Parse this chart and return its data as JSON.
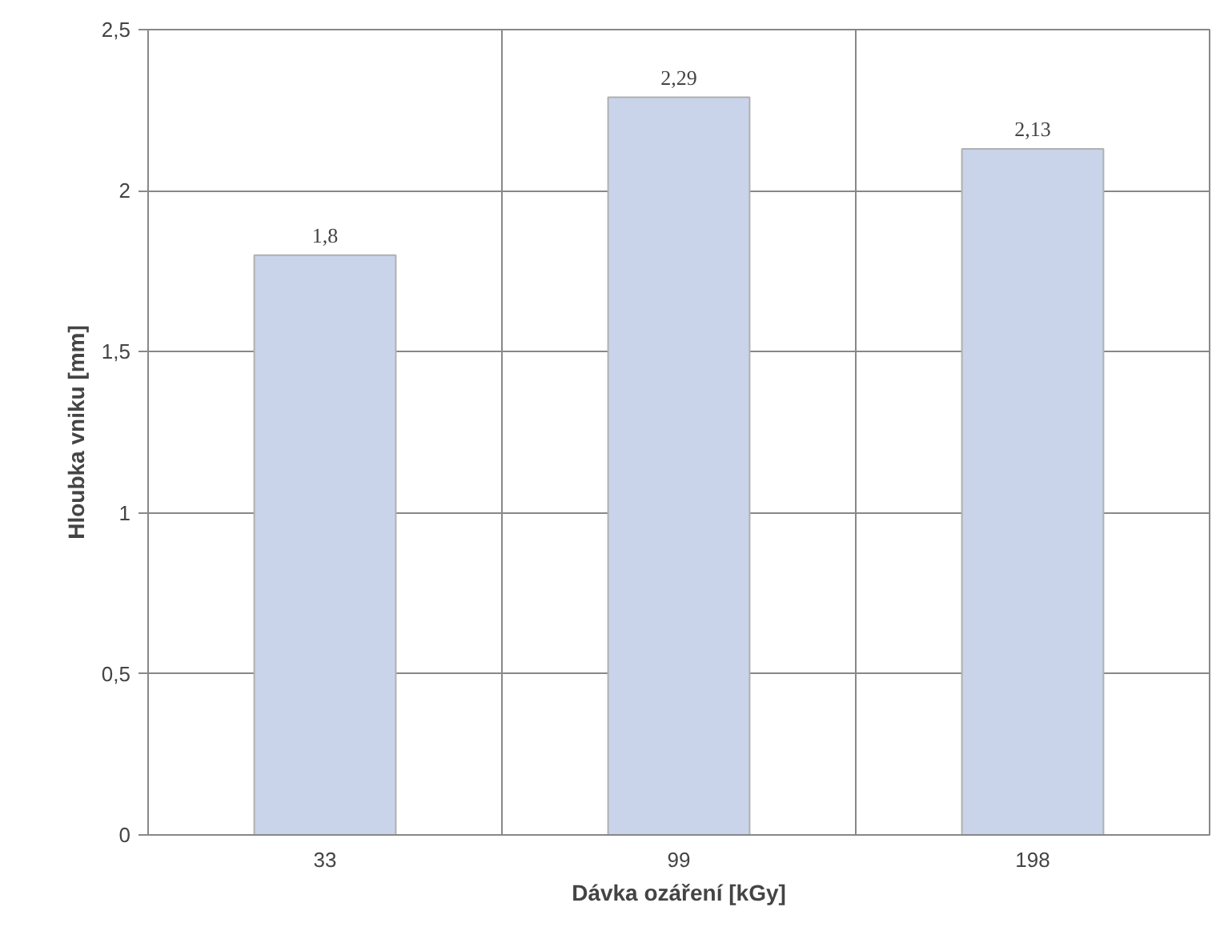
{
  "chart_data": {
    "type": "bar",
    "xlabel": "Dávka ozáření [kGy]",
    "ylabel": "Hloubka vniku [mm]",
    "categories": [
      "33",
      "99",
      "198"
    ],
    "values": [
      1.8,
      2.29,
      2.13
    ],
    "value_labels": [
      "1,8",
      "2,29",
      "2,13"
    ],
    "color": "#c9d4ea",
    "ylim": [
      0,
      2.5
    ],
    "yticks": [
      0,
      {
        "value": 0.5,
        "label": "0,5"
      },
      1,
      {
        "value": 1.5,
        "label": "1,5"
      },
      2,
      {
        "value": 2.5,
        "label": "2,5"
      }
    ],
    "grid": true
  }
}
